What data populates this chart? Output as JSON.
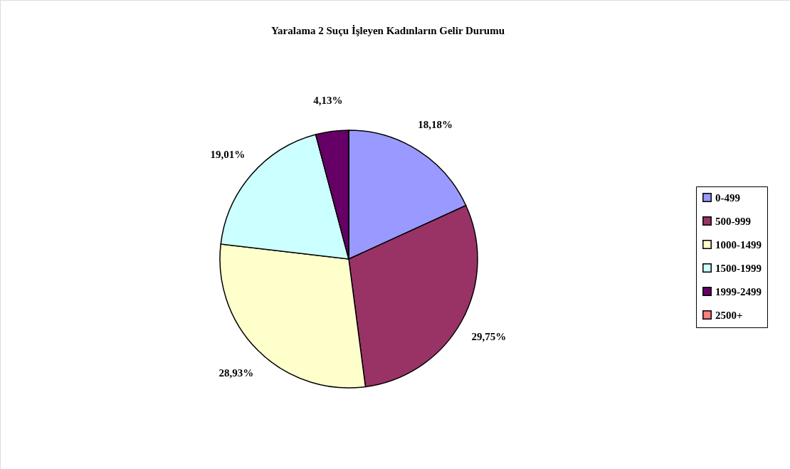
{
  "chart_data": {
    "type": "pie",
    "title": "Yaralama 2 Suçu İşleyen Kadınların Gelir Durumu",
    "categories": [
      "0-499",
      "500-999",
      "1000-1499",
      "1500-1999",
      "1999-2499",
      "2500+"
    ],
    "values": [
      18.18,
      29.75,
      28.93,
      19.01,
      4.13,
      0
    ],
    "colors": [
      "#9999ff",
      "#993366",
      "#ffffcc",
      "#ccffff",
      "#660066",
      "#ff8080"
    ],
    "value_labels": [
      "18,18%",
      "29,75%",
      "28,93%",
      "19,01%",
      "4,13%",
      null
    ],
    "legend": "right"
  }
}
